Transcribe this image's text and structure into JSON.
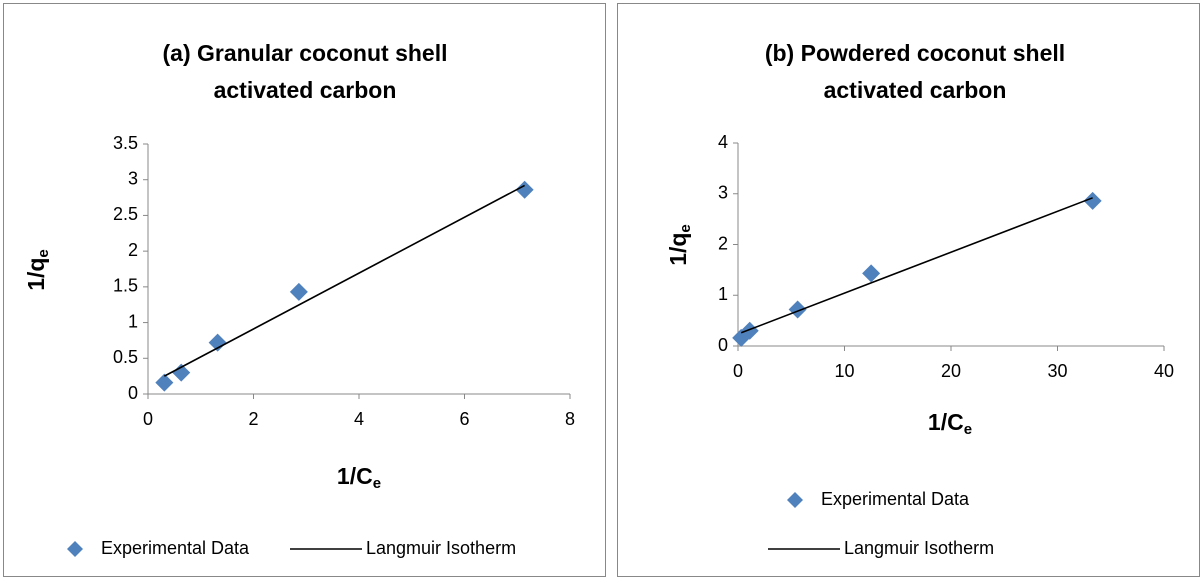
{
  "chart_data": [
    {
      "type": "scatter",
      "title": [
        "(a) Granular coconut shell",
        "activated carbon"
      ],
      "x_label": "1/Ce",
      "y_label": "1/qe",
      "xlim": [
        0,
        8
      ],
      "xticks": [
        0,
        2,
        4,
        6,
        8
      ],
      "ylim": [
        0,
        3.5
      ],
      "yticks": [
        0,
        0.5,
        1,
        1.5,
        2,
        2.5,
        3,
        3.5
      ],
      "series": [
        {
          "name": "Experimental Data",
          "color": "#4f81bd",
          "marker": "diamond",
          "x": [
            0.31,
            0.63,
            1.32,
            2.86,
            7.14
          ],
          "values": [
            0.16,
            0.3,
            0.72,
            1.43,
            2.86
          ]
        },
        {
          "name": "Langmuir Isotherm",
          "color": "#000000",
          "marker": "line",
          "x": [
            0.31,
            7.14
          ],
          "values": [
            0.25,
            2.92
          ]
        }
      ]
    },
    {
      "type": "scatter",
      "title": [
        "(b) Powdered coconut shell",
        "activated carbon"
      ],
      "x_label": "1/Ce",
      "y_label": "1/qe",
      "xlim": [
        0,
        40
      ],
      "xticks": [
        0,
        10,
        20,
        30,
        40
      ],
      "ylim": [
        0,
        4
      ],
      "yticks": [
        0,
        1,
        2,
        3,
        4
      ],
      "series": [
        {
          "name": "Experimental Data",
          "color": "#4f81bd",
          "marker": "diamond",
          "x": [
            0.3,
            1.1,
            5.6,
            12.5,
            33.3
          ],
          "values": [
            0.16,
            0.3,
            0.72,
            1.43,
            2.86
          ]
        },
        {
          "name": "Langmuir Isotherm",
          "color": "#000000",
          "marker": "line",
          "x": [
            0.3,
            33.3
          ],
          "values": [
            0.26,
            2.92
          ]
        }
      ]
    }
  ]
}
